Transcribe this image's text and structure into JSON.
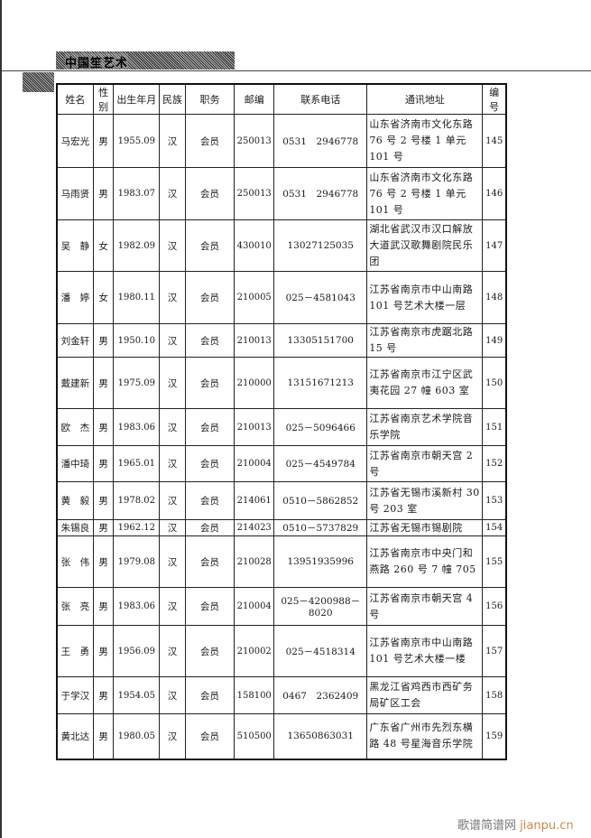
{
  "header": {
    "title": "中国笙艺术"
  },
  "table": {
    "columns": [
      "姓名",
      "性别",
      "出生年月",
      "民族",
      "职务",
      "邮编",
      "联系电话",
      "通讯地址",
      "编号"
    ],
    "rows": [
      [
        "马宏光",
        "男",
        "1955.09",
        "汉",
        "会员",
        "250013",
        "0531　2946778",
        "山东省济南市文化东路 76 号 2 号楼 1 单元 101 号",
        "145"
      ],
      [
        "马雨贤",
        "男",
        "1983.07",
        "汉",
        "会员",
        "250013",
        "0531　2946778",
        "山东省济南市文化东路 76 号 2 号楼 1 单元 101 号",
        "146"
      ],
      [
        "吴　静",
        "女",
        "1982.09",
        "汉",
        "会员",
        "430010",
        "13027125035",
        "湖北省武汉市汉口解放大道武汉歌舞剧院民乐团",
        "147"
      ],
      [
        "潘　婷",
        "女",
        "1980.11",
        "汉",
        "会员",
        "210005",
        "025－4581043",
        "江苏省南京市中山南路 101 号艺术大楼一层",
        "148"
      ],
      [
        "刘金轩",
        "男",
        "1950.10",
        "汉",
        "会员",
        "210013",
        "13305151700",
        "江苏省南京市虎踞北路 15 号",
        "149"
      ],
      [
        "戴建新",
        "男",
        "1975.09",
        "汉",
        "会员",
        "210000",
        "13151671213",
        "江苏省南京市江宁区武夷花园 27 幢 603 室",
        "150"
      ],
      [
        "欧　杰",
        "男",
        "1983.06",
        "汉",
        "会员",
        "210013",
        "025－5096466",
        "江苏省南京艺术学院音乐学院",
        "151"
      ],
      [
        "潘中琦",
        "男",
        "1965.01",
        "汉",
        "会员",
        "210004",
        "025－4549784",
        "江苏省南京市朝天宫 2 号",
        "152"
      ],
      [
        "黄　毅",
        "男",
        "1978.02",
        "汉",
        "会员",
        "214061",
        "0510－5862852",
        "江苏省无锡市溪新村 30 号 203 室",
        "153"
      ],
      [
        "朱锡良",
        "男",
        "1962.12",
        "汉",
        "会员",
        "214023",
        "0510－5737829",
        "江苏省无锡市锡剧院",
        "154"
      ],
      [
        "张　伟",
        "男",
        "1979.08",
        "汉",
        "会员",
        "210028",
        "13951935996",
        "江苏省南京市中央门和燕路 260 号 7 幢 705",
        "155"
      ],
      [
        "张　亮",
        "男",
        "1983.06",
        "汉",
        "会员",
        "210004",
        "025－4200988－8020",
        "江苏省南京市朝天宫 4 号",
        "156"
      ],
      [
        "王　勇",
        "男",
        "1956.09",
        "汉",
        "会员",
        "210002",
        "025－4518314",
        "江苏省南京市中山南路 101 号艺术大楼一楼",
        "157"
      ],
      [
        "于学汉",
        "男",
        "1954.05",
        "汉",
        "会员",
        "158100",
        "0467　2362409",
        "黑龙江省鸡西市西矿务局矿区工会",
        "158"
      ],
      [
        "黄北达",
        "男",
        "1980.05",
        "汉",
        "会员",
        "510500",
        "13650863031",
        "广东省广州市先烈东横路 48 号星海音乐学院",
        "159"
      ]
    ]
  },
  "watermark": {
    "cn": "歌谱简谱网",
    "url": "jianpu.cn"
  }
}
